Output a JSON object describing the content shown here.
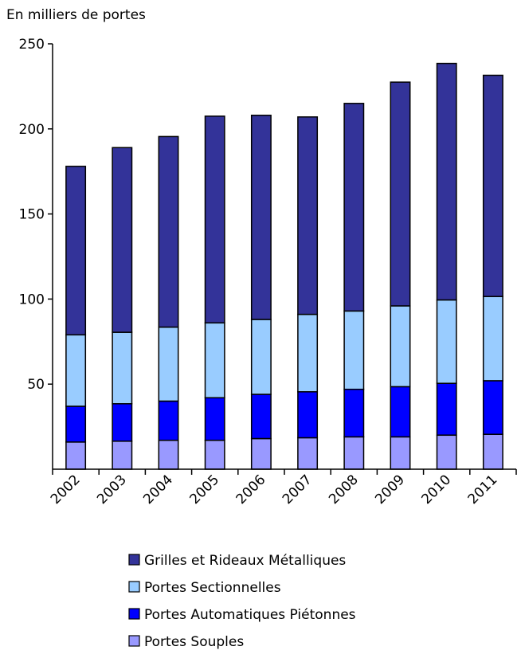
{
  "chart_data": {
    "type": "bar",
    "stacked": true,
    "ylabel": "En milliers de portes",
    "categories": [
      "2002",
      "2003",
      "2004",
      "2005",
      "2006",
      "2007",
      "2008",
      "2009",
      "2010",
      "2011"
    ],
    "ylim": [
      0,
      250
    ],
    "yticks": [
      50,
      100,
      150,
      200,
      250
    ],
    "grid": false,
    "legend_position": "bottom",
    "series": [
      {
        "name": "Portes Souples",
        "color": "#9999ff",
        "values": [
          16,
          16.5,
          17,
          17,
          18,
          18.5,
          19,
          19,
          20,
          20.5
        ]
      },
      {
        "name": "Portes Automatiques Piétonnes",
        "color": "#0000ff",
        "values": [
          21,
          22,
          23,
          25,
          26,
          27,
          28,
          29.5,
          30.5,
          31.5
        ]
      },
      {
        "name": "Portes Sectionnelles",
        "color": "#99ccff",
        "values": [
          42,
          42,
          43.5,
          44,
          44,
          45.5,
          46,
          47.5,
          49,
          49.5
        ]
      },
      {
        "name": "Grilles et Rideaux Métalliques",
        "color": "#333399",
        "values": [
          99,
          108.5,
          112,
          121.5,
          120,
          116,
          122,
          131.5,
          139,
          130
        ]
      }
    ],
    "legend_order": [
      "Grilles et Rideaux Métalliques",
      "Portes Sectionnelles",
      "Portes Automatiques Piétonnes",
      "Portes Souples"
    ]
  }
}
